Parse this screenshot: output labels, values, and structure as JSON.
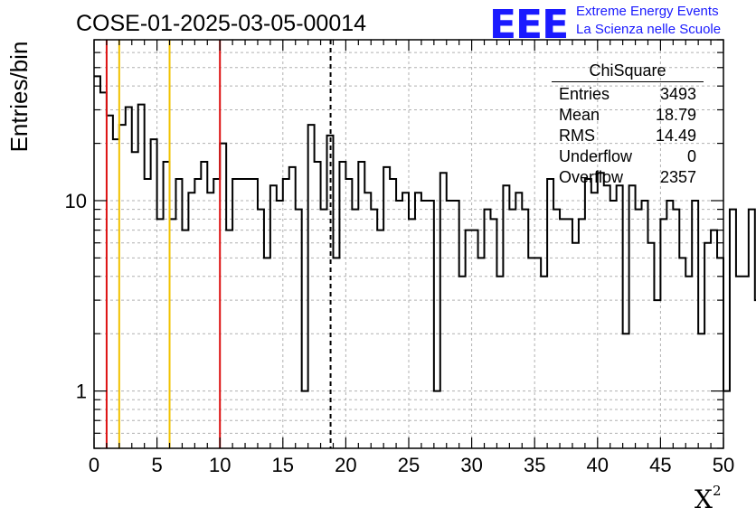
{
  "title": "COSE-01-2025-03-05-00014",
  "logo": {
    "mark": "EEE",
    "line1": "Extreme Energy Events",
    "line2": "La Scienza nelle Scuole",
    "color": "#1a1aff"
  },
  "stats": {
    "title": "ChiSquare",
    "rows": [
      {
        "label": "Entries",
        "value": "3493"
      },
      {
        "label": "Mean",
        "value": "18.79"
      },
      {
        "label": "RMS",
        "value": "14.49"
      },
      {
        "label": "Underflow",
        "value": "0"
      },
      {
        "label": "Overflow",
        "value": "2357"
      }
    ]
  },
  "chart_data": {
    "type": "histogram",
    "xlabel": "X",
    "xlabel_sup": "2",
    "ylabel": "Entries/bin",
    "xlim": [
      0,
      50
    ],
    "ylim": [
      0.5,
      70
    ],
    "yscale": "log",
    "bin_width": 0.5,
    "xticks": [
      0,
      5,
      10,
      15,
      20,
      25,
      30,
      35,
      40,
      45,
      50
    ],
    "yticks": [
      1,
      10
    ],
    "grid": true,
    "values": [
      45,
      37,
      28,
      21,
      25,
      31,
      18,
      32,
      13,
      21,
      8,
      16,
      8,
      13,
      7,
      11,
      13,
      16,
      11,
      13,
      20,
      7,
      13,
      13,
      13,
      13,
      9,
      5,
      12,
      10,
      13,
      15,
      9,
      1,
      25,
      16,
      9,
      22,
      5,
      16,
      13,
      9,
      16,
      11,
      9,
      7,
      15,
      13,
      10,
      11,
      8,
      11,
      10,
      10,
      1,
      14,
      10,
      10,
      4,
      7,
      7,
      5,
      9,
      8,
      4,
      12,
      9,
      11,
      9,
      5,
      5,
      4,
      13,
      9,
      8,
      8,
      6,
      8,
      13,
      11,
      14,
      12,
      10,
      12,
      2,
      12,
      9,
      10,
      6,
      3,
      8,
      10,
      9,
      5,
      4,
      10,
      2,
      6,
      7,
      5,
      1,
      9,
      4,
      4,
      9,
      3
    ],
    "vlines": [
      {
        "x": 1,
        "color": "#dd1111",
        "style": "solid"
      },
      {
        "x": 2,
        "color": "#f2c200",
        "style": "solid"
      },
      {
        "x": 6,
        "color": "#f2c200",
        "style": "solid"
      },
      {
        "x": 10,
        "color": "#dd1111",
        "style": "solid"
      },
      {
        "x": 18.79,
        "color": "#000000",
        "style": "dashed"
      }
    ]
  }
}
